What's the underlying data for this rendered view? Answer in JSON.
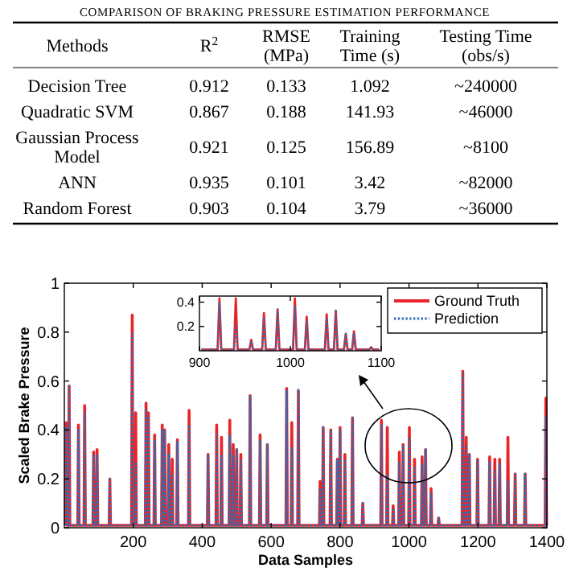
{
  "chart_data": [
    {
      "type": "other",
      "title": "COMPARISON OF BRAKING PRESSURE ESTIMATION PERFORMANCE",
      "categories": [
        "Methods",
        "R$^{2}$",
        "RMSE (MPa)",
        "Training Time (s)",
        "Testing Time (obs/s)"
      ],
      "cell_labels": [
        [
          "Decision Tree",
          "0.912",
          "0.133",
          "1.092",
          "~240000"
        ],
        [
          "Quadratic SVM",
          "0.867",
          "0.188",
          "141.93",
          "~46000"
        ],
        [
          "Gaussian Process Model",
          "0.921",
          "0.125",
          "156.89",
          "~8100"
        ],
        [
          "ANN",
          "0.935",
          "0.101",
          "3.42",
          "~82000"
        ],
        [
          "Random Forest",
          "0.903",
          "0.104",
          "3.79",
          "~36000"
        ]
      ]
    },
    {
      "type": "line",
      "xlabel": "Data Samples",
      "ylabel": "Scaled Brake Pressure",
      "xlim": [
        0,
        1400
      ],
      "xticks": [
        200,
        400,
        600,
        800,
        1000,
        1200,
        1400
      ],
      "ylim": [
        0,
        1
      ],
      "yticks": [
        0,
        0.2,
        0.4,
        0.6,
        0.8,
        1
      ],
      "legend": "top right",
      "grid": false,
      "x": [
        3,
        5,
        7,
        12,
        14,
        16,
        39,
        41,
        43,
        57,
        59,
        61,
        83,
        85,
        87,
        93,
        95,
        97,
        130,
        132,
        134,
        195,
        197,
        199,
        205,
        207,
        209,
        235,
        237,
        239,
        242,
        244,
        246,
        260,
        262,
        264,
        282,
        284,
        286,
        289,
        291,
        293,
        301,
        303,
        305,
        311,
        313,
        315,
        326,
        328,
        330,
        360,
        362,
        364,
        415,
        417,
        419,
        440,
        442,
        444,
        454,
        456,
        458,
        478,
        480,
        482,
        488,
        490,
        492,
        498,
        500,
        502,
        510,
        512,
        514,
        537,
        539,
        541,
        566,
        568,
        570,
        587,
        589,
        591,
        643,
        645,
        647,
        658,
        660,
        662,
        677,
        679,
        681,
        740,
        742,
        744,
        749,
        751,
        753,
        771,
        773,
        775,
        790,
        792,
        794,
        798,
        800,
        802,
        812,
        814,
        816,
        834,
        836,
        838,
        864,
        866,
        868,
        918,
        920,
        922,
        935,
        937,
        939,
        952,
        954,
        956,
        970,
        972,
        974,
        981,
        983,
        985,
        999,
        1001,
        1003,
        1014,
        1016,
        1018,
        1036,
        1038,
        1040,
        1046,
        1048,
        1050,
        1062,
        1064,
        1066,
        1084,
        1086,
        1088,
        1154,
        1156,
        1158,
        1164,
        1166,
        1168,
        1173,
        1175,
        1177,
        1197,
        1199,
        1201,
        1232,
        1234,
        1236,
        1247,
        1249,
        1251,
        1261,
        1263,
        1265,
        1285,
        1287,
        1289,
        1306,
        1308,
        1310,
        1335,
        1337,
        1339,
        1395,
        1397,
        1399
      ],
      "series": [
        {
          "name": "Ground Truth",
          "color": "#e8262a",
          "line_style": "solid",
          "values": [
            0.01,
            0.43,
            0.01,
            0.01,
            0.58,
            0.01,
            0.01,
            0.42,
            0.01,
            0.01,
            0.5,
            0.01,
            0.01,
            0.31,
            0.01,
            0.01,
            0.32,
            0.01,
            0.01,
            0.2,
            0.01,
            0.01,
            0.87,
            0.01,
            0.01,
            0.47,
            0.01,
            0.01,
            0.51,
            0.01,
            0.01,
            0.47,
            0.01,
            0.01,
            0.38,
            0.01,
            0.01,
            0.42,
            0.01,
            0.01,
            0.4,
            0.01,
            0.01,
            0.34,
            0.01,
            0.01,
            0.28,
            0.01,
            0.01,
            0.36,
            0.01,
            0.01,
            0.48,
            0.01,
            0.01,
            0.3,
            0.01,
            0.01,
            0.42,
            0.01,
            0.01,
            0.37,
            0.01,
            0.01,
            0.44,
            0.01,
            0.01,
            0.34,
            0.01,
            0.01,
            0.32,
            0.01,
            0.01,
            0.3,
            0.01,
            0.01,
            0.54,
            0.01,
            0.01,
            0.38,
            0.01,
            0.01,
            0.34,
            0.01,
            0.01,
            0.57,
            0.01,
            0.01,
            0.43,
            0.01,
            0.01,
            0.56,
            0.01,
            0.01,
            0.19,
            0.01,
            0.01,
            0.41,
            0.01,
            0.01,
            0.4,
            0.01,
            0.01,
            0.28,
            0.01,
            0.01,
            0.41,
            0.01,
            0.01,
            0.3,
            0.01,
            0.01,
            0.45,
            0.01,
            0.01,
            0.1,
            0.01,
            0.01,
            0.44,
            0.01,
            0.01,
            0.41,
            0.01,
            0.01,
            0.09,
            0.01,
            0.01,
            0.31,
            0.01,
            0.01,
            0.34,
            0.01,
            0.01,
            0.41,
            0.01,
            0.01,
            0.28,
            0.01,
            0.01,
            0.29,
            0.01,
            0.01,
            0.32,
            0.01,
            0.01,
            0.16,
            0.01,
            0.01,
            0.04,
            0.01,
            0.01,
            0.64,
            0.01,
            0.01,
            0.37,
            0.01,
            0.01,
            0.3,
            0.01,
            0.01,
            0.28,
            0.01,
            0.01,
            0.29,
            0.01,
            0.01,
            0.28,
            0.01,
            0.01,
            0.28,
            0.01,
            0.01,
            0.37,
            0.01,
            0.01,
            0.22,
            0.01,
            0.01,
            0.22,
            0.01,
            0.01,
            0.53,
            0.01
          ]
        },
        {
          "name": "Prediction",
          "color": "#2e6db4",
          "line_style": "dotted",
          "values": [
            0.01,
            0.41,
            0.01,
            0.01,
            0.58,
            0.01,
            0.01,
            0.4,
            0.01,
            0.01,
            0.47,
            0.01,
            0.01,
            0.3,
            0.01,
            0.01,
            0.3,
            0.01,
            0.01,
            0.2,
            0.01,
            0.01,
            0.8,
            0.01,
            0.01,
            0.27,
            0.01,
            0.01,
            0.48,
            0.01,
            0.01,
            0.45,
            0.01,
            0.01,
            0.36,
            0.01,
            0.01,
            0.4,
            0.01,
            0.01,
            0.4,
            0.01,
            0.01,
            0.3,
            0.01,
            0.01,
            0.22,
            0.01,
            0.01,
            0.35,
            0.01,
            0.01,
            0.42,
            0.01,
            0.01,
            0.3,
            0.01,
            0.01,
            0.38,
            0.01,
            0.01,
            0.3,
            0.01,
            0.01,
            0.38,
            0.01,
            0.01,
            0.3,
            0.01,
            0.01,
            0.32,
            0.01,
            0.01,
            0.28,
            0.01,
            0.01,
            0.54,
            0.01,
            0.01,
            0.36,
            0.01,
            0.01,
            0.34,
            0.01,
            0.01,
            0.56,
            0.01,
            0.01,
            0.33,
            0.01,
            0.01,
            0.57,
            0.01,
            0.01,
            0.16,
            0.01,
            0.01,
            0.41,
            0.01,
            0.01,
            0.4,
            0.01,
            0.01,
            0.28,
            0.01,
            0.01,
            0.4,
            0.01,
            0.01,
            0.28,
            0.01,
            0.01,
            0.45,
            0.01,
            0.01,
            0.1,
            0.01,
            0.01,
            0.42,
            0.01,
            0.01,
            0.22,
            0.01,
            0.01,
            0.08,
            0.01,
            0.01,
            0.27,
            0.01,
            0.01,
            0.34,
            0.01,
            0.01,
            0.37,
            0.01,
            0.01,
            0.25,
            0.01,
            0.01,
            0.26,
            0.01,
            0.01,
            0.32,
            0.01,
            0.01,
            0.14,
            0.01,
            0.01,
            0.04,
            0.01,
            0.01,
            0.63,
            0.01,
            0.01,
            0.33,
            0.01,
            0.01,
            0.3,
            0.01,
            0.01,
            0.28,
            0.01,
            0.01,
            0.27,
            0.01,
            0.01,
            0.23,
            0.01,
            0.01,
            0.26,
            0.01,
            0.01,
            0.19,
            0.01,
            0.01,
            0.22,
            0.01,
            0.01,
            0.22,
            0.01,
            0.01,
            0.46,
            0.01
          ]
        }
      ]
    },
    {
      "type": "line",
      "xlim": [
        900,
        1100
      ],
      "xticks": [
        900,
        1000,
        1100
      ],
      "ylim": [
        0,
        0.45
      ],
      "yticks": [
        0.2,
        0.4
      ],
      "grid": false,
      "x": [
        902,
        920,
        922,
        924,
        938,
        940,
        942,
        955,
        957,
        959,
        969,
        971,
        973,
        984,
        986,
        988,
        1003,
        1005,
        1007,
        1016,
        1018,
        1020,
        1038,
        1040,
        1042,
        1048,
        1050,
        1052,
        1059,
        1061,
        1063,
        1068,
        1070,
        1072,
        1087,
        1089,
        1091,
        1098
      ],
      "series": [
        {
          "color": "#e8262a",
          "line_style": "solid",
          "values": [
            0.01,
            0.01,
            0.43,
            0.01,
            0.01,
            0.43,
            0.01,
            0.01,
            0.09,
            0.01,
            0.01,
            0.31,
            0.01,
            0.01,
            0.34,
            0.01,
            0.01,
            0.43,
            0.01,
            0.01,
            0.28,
            0.01,
            0.01,
            0.3,
            0.01,
            0.01,
            0.33,
            0.01,
            0.01,
            0.14,
            0.01,
            0.01,
            0.16,
            0.01,
            0.01,
            0.03,
            0.01,
            0.01
          ]
        },
        {
          "color": "#2e6db4",
          "line_style": "dotted",
          "values": [
            0.01,
            0.01,
            0.4,
            0.01,
            0.01,
            0.22,
            0.01,
            0.01,
            0.08,
            0.01,
            0.01,
            0.28,
            0.01,
            0.01,
            0.34,
            0.01,
            0.01,
            0.37,
            0.01,
            0.01,
            0.25,
            0.01,
            0.01,
            0.27,
            0.01,
            0.01,
            0.33,
            0.01,
            0.01,
            0.14,
            0.01,
            0.01,
            0.15,
            0.01,
            0.01,
            0.03,
            0.01,
            0.01
          ]
        }
      ]
    }
  ]
}
